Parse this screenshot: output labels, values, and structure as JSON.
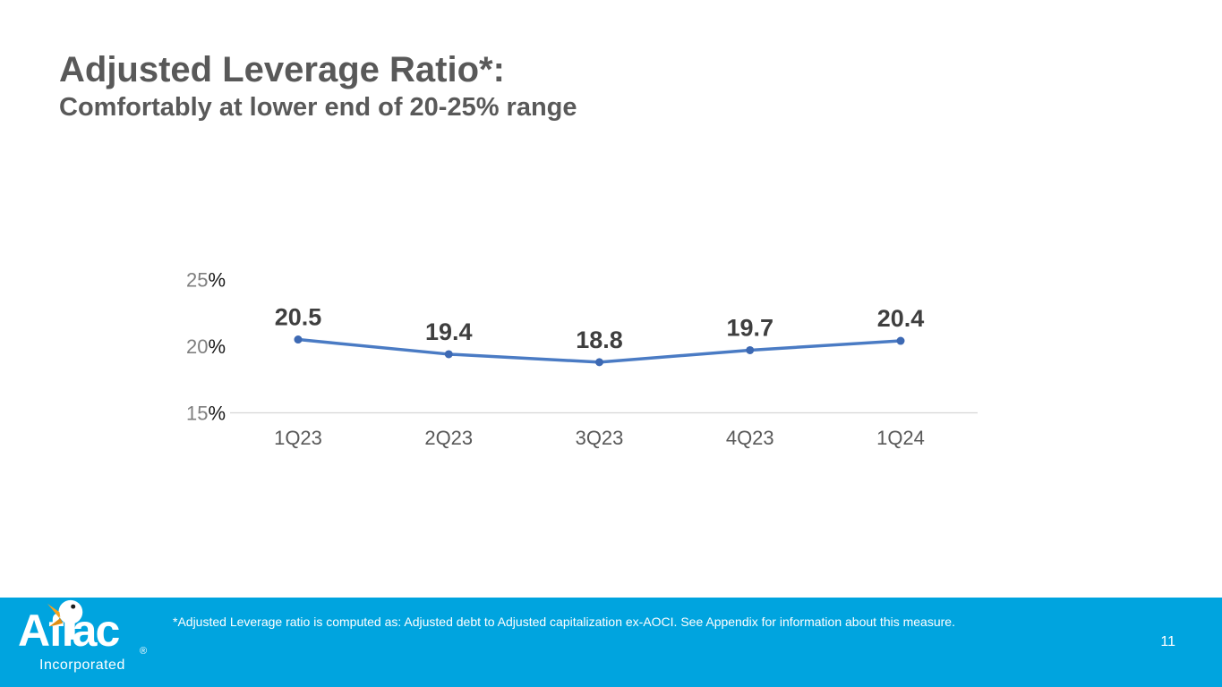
{
  "slide": {
    "title": "Adjusted Leverage Ratio*:",
    "subtitle": "Comfortably at lower end of 20-25% range",
    "page_number": "11",
    "footnote": "*Adjusted Leverage ratio is computed as: Adjusted debt to Adjusted capitalization ex-AOCI. See Appendix for information about this measure."
  },
  "logo": {
    "brand": "Aflac",
    "registered_mark": "®",
    "subtext": "Incorporated"
  },
  "chart_data": {
    "type": "line",
    "title": "Adjusted Leverage Ratio*",
    "categories": [
      "1Q23",
      "2Q23",
      "3Q23",
      "4Q23",
      "1Q24"
    ],
    "series": [
      {
        "name": "Adjusted Leverage Ratio",
        "values": [
          20.5,
          19.4,
          18.8,
          19.7,
          20.4
        ]
      }
    ],
    "data_labels": [
      "20.5",
      "19.4",
      "18.8",
      "19.7",
      "20.4"
    ],
    "y_ticks": [
      {
        "value": 25,
        "label": "25",
        "suffix": "%"
      },
      {
        "value": 20,
        "label": "20",
        "suffix": "%"
      },
      {
        "value": 15,
        "label": "15",
        "suffix": "%"
      }
    ],
    "ylim": [
      15,
      25
    ],
    "xlabel": "",
    "ylabel": "",
    "grid": false,
    "legend": "none"
  },
  "colors": {
    "footer_bar": "#00A4DF",
    "heading_text": "#595959",
    "line": "#4A7BC4",
    "marker": "#3D69B3",
    "axis_line": "#D6D6D6",
    "tick_number": "#7F7F7F",
    "tick_percent": "#1A1A1A",
    "data_label": "#3F3F3F",
    "category_label": "#595959",
    "footer_text": "#FFFFFF",
    "duck_beak_upper": "#F5A21C",
    "duck_beak_lower": "#E08E12"
  }
}
